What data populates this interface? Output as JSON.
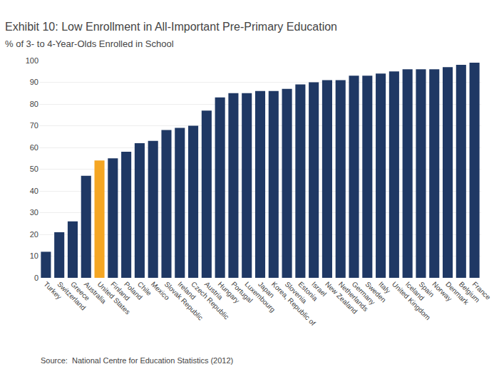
{
  "chart_data": {
    "type": "bar",
    "title": "Exhibit 10: Low Enrollment in All-Important Pre-Primary Education",
    "subtitle": "% of 3- to 4-Year-Olds Enrolled in School",
    "annotations": [
      "Source:  National Centre for Education Statistics (2012)"
    ],
    "categories": [
      "Turkey",
      "Switzerland",
      "Greece",
      "Australia",
      "United States",
      "Finland",
      "Poland",
      "Chile",
      "Mexico",
      "Slovak Republic",
      "Ireland",
      "Czech Republic",
      "Austria",
      "Hungary",
      "Portugal",
      "Luxembourg",
      "Japan",
      "Korea, Republic of",
      "Slovenia",
      "Estonia",
      "Israel",
      "New Zealand",
      "Netherlands",
      "Germany",
      "Sweden",
      "Italy",
      "United Kingdom",
      "Iceland",
      "Spain",
      "Norway",
      "Denmark",
      "Belgium",
      "France"
    ],
    "values": [
      12,
      21,
      26,
      47,
      54,
      55,
      58,
      62,
      63,
      68,
      69,
      70,
      77,
      83,
      85,
      85,
      86,
      86,
      87,
      89,
      90,
      91,
      91,
      93,
      93,
      94,
      95,
      96,
      96,
      96,
      97,
      98,
      99
    ],
    "colors": [
      "#1F3864",
      "#1F3864",
      "#1F3864",
      "#1F3864",
      "#F5A623",
      "#1F3864",
      "#1F3864",
      "#1F3864",
      "#1F3864",
      "#1F3864",
      "#1F3864",
      "#1F3864",
      "#1F3864",
      "#1F3864",
      "#1F3864",
      "#1F3864",
      "#1F3864",
      "#1F3864",
      "#1F3864",
      "#1F3864",
      "#1F3864",
      "#1F3864",
      "#1F3864",
      "#1F3864",
      "#1F3864",
      "#1F3864",
      "#1F3864",
      "#1F3864",
      "#1F3864",
      "#1F3864",
      "#1F3864",
      "#1F3864",
      "#1F3864"
    ],
    "ylim": [
      0,
      100
    ],
    "yticks": [
      0,
      10,
      20,
      30,
      40,
      50,
      60,
      70,
      80,
      90,
      100
    ],
    "grid": true
  }
}
